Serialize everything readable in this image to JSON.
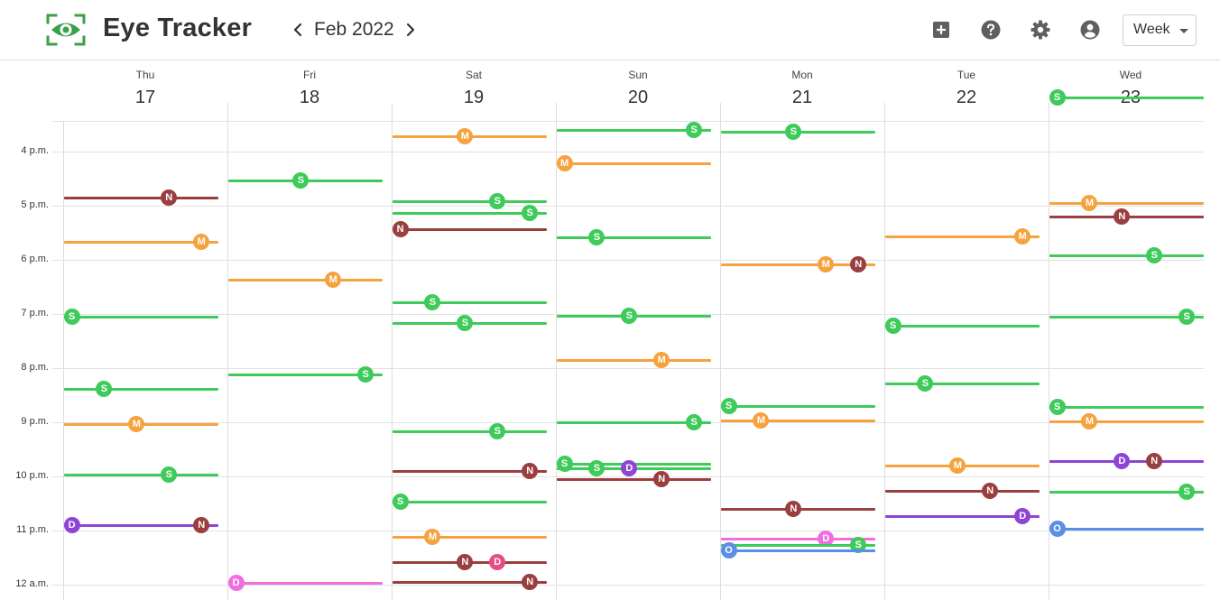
{
  "app": {
    "title": "Eye Tracker"
  },
  "nav": {
    "month": "Feb 2022"
  },
  "toolbar": {
    "view": "Week"
  },
  "icons": {
    "logo": "eye-tracker-logo",
    "prev": "chevron-left-icon",
    "next": "chevron-right-icon",
    "add": "add-box-icon",
    "help": "help-icon",
    "settings": "gear-icon",
    "account": "account-icon"
  },
  "colors": {
    "S": "#3ecb5a",
    "M": "#f6a23e",
    "N": "#9a3f3f",
    "D": "#8e44d6",
    "O": "#5b8ee6",
    "P": "#f06ee0",
    "R": "#e84c84"
  },
  "days": [
    {
      "name": "Thu",
      "date": "17"
    },
    {
      "name": "Fri",
      "date": "18"
    },
    {
      "name": "Sat",
      "date": "19"
    },
    {
      "name": "Sun",
      "date": "20"
    },
    {
      "name": "Mon",
      "date": "21"
    },
    {
      "name": "Tue",
      "date": "22"
    },
    {
      "name": "Wed",
      "date": "23"
    }
  ],
  "time_labels": [
    "4 p.m.",
    "5 p.m.",
    "6 p.m.",
    "7 p.m.",
    "8 p.m.",
    "9 p.m.",
    "10 p.m.",
    "11 p.m.",
    "12 a.m."
  ],
  "events": [
    {
      "day": 0,
      "time": "16:51",
      "label": "N",
      "color": "N",
      "marker": 0.68
    },
    {
      "day": 0,
      "time": "17:40",
      "label": "M",
      "color": "M",
      "marker": 0.89
    },
    {
      "day": 0,
      "time": "19:03",
      "label": "S",
      "color": "S",
      "marker": 0.05
    },
    {
      "day": 0,
      "time": "20:23",
      "label": "S",
      "color": "S",
      "marker": 0.26
    },
    {
      "day": 0,
      "time": "21:02",
      "label": "M",
      "color": "M",
      "marker": 0.47
    },
    {
      "day": 0,
      "time": "21:58",
      "label": "S",
      "color": "S",
      "marker": 0.68
    },
    {
      "day": 0,
      "time": "22:54",
      "label": "D",
      "color": "D",
      "marker": 0.05
    },
    {
      "day": 0,
      "time": "22:54",
      "label": "N",
      "color": "N",
      "marker": 0.89
    },
    {
      "day": 1,
      "time": "16:32",
      "label": "S",
      "color": "S",
      "marker": 0.47
    },
    {
      "day": 1,
      "time": "18:22",
      "label": "M",
      "color": "M",
      "marker": 0.68
    },
    {
      "day": 1,
      "time": "20:07",
      "label": "S",
      "color": "S",
      "marker": 0.89
    },
    {
      "day": 1,
      "time": "23:58",
      "label": "D",
      "color": "P",
      "marker": 0.05
    },
    {
      "day": 2,
      "time": "15:43",
      "label": "M",
      "color": "M",
      "marker": 0.47
    },
    {
      "day": 2,
      "time": "16:55",
      "label": "S",
      "color": "S",
      "marker": 0.68
    },
    {
      "day": 2,
      "time": "17:08",
      "label": "S",
      "color": "S",
      "marker": 0.89
    },
    {
      "day": 2,
      "time": "17:26",
      "label": "N",
      "color": "N",
      "marker": 0.05
    },
    {
      "day": 2,
      "time": "18:47",
      "label": "S",
      "color": "S",
      "marker": 0.26
    },
    {
      "day": 2,
      "time": "19:10",
      "label": "S",
      "color": "S",
      "marker": 0.47
    },
    {
      "day": 2,
      "time": "21:10",
      "label": "S",
      "color": "S",
      "marker": 0.68
    },
    {
      "day": 2,
      "time": "21:54",
      "label": "N",
      "color": "N",
      "marker": 0.89
    },
    {
      "day": 2,
      "time": "22:28",
      "label": "S",
      "color": "S",
      "marker": 0.05
    },
    {
      "day": 2,
      "time": "23:07",
      "label": "M",
      "color": "M",
      "marker": 0.26
    },
    {
      "day": 2,
      "time": "23:35",
      "label": "N",
      "color": "N",
      "marker": 0.47
    },
    {
      "day": 2,
      "time": "23:35",
      "label": "D",
      "color": "R",
      "marker": 0.68
    },
    {
      "day": 2,
      "time": "23:57",
      "label": "N",
      "color": "N",
      "marker": 0.89
    },
    {
      "day": 3,
      "time": "15:36",
      "label": "S",
      "color": "S",
      "marker": 0.89
    },
    {
      "day": 3,
      "time": "16:13",
      "label": "M",
      "color": "M",
      "marker": 0.05
    },
    {
      "day": 3,
      "time": "17:35",
      "label": "S",
      "color": "S",
      "marker": 0.26
    },
    {
      "day": 3,
      "time": "19:02",
      "label": "S",
      "color": "S",
      "marker": 0.47
    },
    {
      "day": 3,
      "time": "19:51",
      "label": "M",
      "color": "M",
      "marker": 0.68
    },
    {
      "day": 3,
      "time": "21:00",
      "label": "S",
      "color": "S",
      "marker": 0.89
    },
    {
      "day": 3,
      "time": "21:46",
      "label": "S",
      "color": "S",
      "marker": 0.05
    },
    {
      "day": 3,
      "time": "21:51",
      "label": "S",
      "color": "S",
      "marker": 0.26
    },
    {
      "day": 3,
      "time": "21:51",
      "label": "D",
      "color": "D",
      "marker": 0.47
    },
    {
      "day": 3,
      "time": "22:03",
      "label": "N",
      "color": "N",
      "marker": 0.68
    },
    {
      "day": 4,
      "time": "15:38",
      "label": "S",
      "color": "S",
      "marker": 0.47
    },
    {
      "day": 4,
      "time": "18:05",
      "label": "M",
      "color": "M",
      "marker": 0.68
    },
    {
      "day": 4,
      "time": "18:05",
      "label": "N",
      "color": "N",
      "marker": 0.89
    },
    {
      "day": 4,
      "time": "20:42",
      "label": "S",
      "color": "S",
      "marker": 0.05
    },
    {
      "day": 4,
      "time": "20:58",
      "label": "M",
      "color": "M",
      "marker": 0.26
    },
    {
      "day": 4,
      "time": "22:36",
      "label": "N",
      "color": "N",
      "marker": 0.47
    },
    {
      "day": 4,
      "time": "23:09",
      "label": "D",
      "color": "P",
      "marker": 0.68
    },
    {
      "day": 4,
      "time": "23:16",
      "label": "S",
      "color": "S",
      "marker": 0.89
    },
    {
      "day": 4,
      "time": "23:22",
      "label": "O",
      "color": "O",
      "marker": 0.05
    },
    {
      "day": 5,
      "time": "17:34",
      "label": "M",
      "color": "M",
      "marker": 0.89
    },
    {
      "day": 5,
      "time": "19:13",
      "label": "S",
      "color": "S",
      "marker": 0.05
    },
    {
      "day": 5,
      "time": "20:17",
      "label": "S",
      "color": "S",
      "marker": 0.26
    },
    {
      "day": 5,
      "time": "21:48",
      "label": "M",
      "color": "M",
      "marker": 0.47
    },
    {
      "day": 5,
      "time": "22:16",
      "label": "N",
      "color": "N",
      "marker": 0.68
    },
    {
      "day": 5,
      "time": "22:44",
      "label": "D",
      "color": "D",
      "marker": 0.89
    },
    {
      "day": 6,
      "time": "15:00",
      "label": "S",
      "color": "S",
      "marker": 0.05
    },
    {
      "day": 6,
      "time": "16:57",
      "label": "M",
      "color": "M",
      "marker": 0.26
    },
    {
      "day": 6,
      "time": "17:12",
      "label": "N",
      "color": "N",
      "marker": 0.47
    },
    {
      "day": 6,
      "time": "17:55",
      "label": "S",
      "color": "S",
      "marker": 0.68
    },
    {
      "day": 6,
      "time": "19:03",
      "label": "S",
      "color": "S",
      "marker": 0.89
    },
    {
      "day": 6,
      "time": "20:43",
      "label": "S",
      "color": "S",
      "marker": 0.05
    },
    {
      "day": 6,
      "time": "20:59",
      "label": "M",
      "color": "M",
      "marker": 0.26
    },
    {
      "day": 6,
      "time": "21:43",
      "label": "D",
      "color": "D",
      "marker": 0.47
    },
    {
      "day": 6,
      "time": "21:43",
      "label": "N",
      "color": "N",
      "marker": 0.68
    },
    {
      "day": 6,
      "time": "22:17",
      "label": "S",
      "color": "S",
      "marker": 0.89
    },
    {
      "day": 6,
      "time": "22:58",
      "label": "O",
      "color": "O",
      "marker": 0.05
    }
  ]
}
